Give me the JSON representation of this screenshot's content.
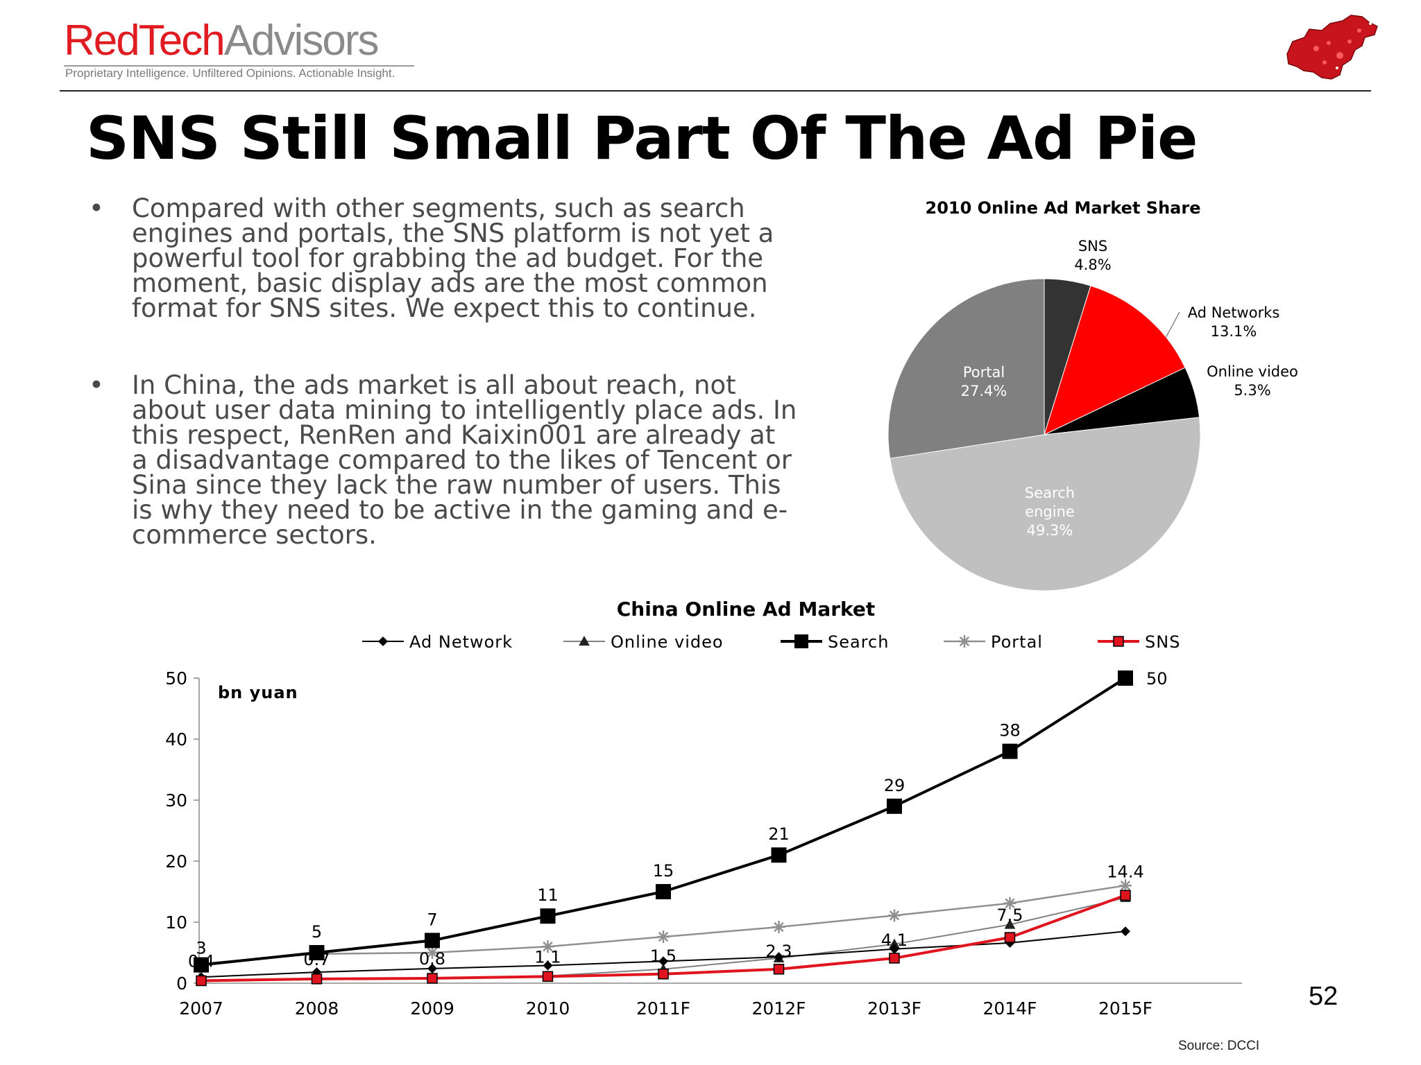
{
  "logo": {
    "red_part": "RedTech",
    "gray_part": "Advisors",
    "tagline": "Proprietary Intelligence.  Unfiltered Opinions.  Actionable Insight."
  },
  "slide": {
    "title": "SNS Still Small Part Of The Ad Pie",
    "page_number": "52",
    "source": "Source: DCCI"
  },
  "bullets": [
    "Compared with other segments, such as search engines and portals, the SNS platform is not yet a powerful tool for grabbing the ad budget. For the moment, basic display ads are the most common format for SNS sites. We expect this to continue.",
    "In China, the ads market is all about reach, not about user data mining to intelligently place ads. In this respect, RenRen and Kaixin001 are already at a disadvantage compared to the likes of Tencent or Sina since they lack the raw number of users. This is why they need to be active in the gaming and e-commerce sectors."
  ],
  "chart_data": [
    {
      "type": "pie",
      "title": "2010 Online Ad Market Share",
      "slices": [
        {
          "name": "SNS",
          "value": 4.8,
          "label": "4.8%",
          "color": "#333333"
        },
        {
          "name": "Ad Networks",
          "value": 13.1,
          "label": "13.1%",
          "color": "#ff0000"
        },
        {
          "name": "Online video",
          "value": 5.3,
          "label": "5.3%",
          "color": "#000000"
        },
        {
          "name": "Search engine",
          "value": 49.3,
          "label": "49.3%",
          "color": "#c0c0c0"
        },
        {
          "name": "Portal",
          "value": 27.4,
          "label": "27.4%",
          "color": "#808080"
        }
      ]
    },
    {
      "type": "line",
      "title": "China Online Ad Market",
      "unit_label": "bn yuan",
      "categories": [
        "2007",
        "2008",
        "2009",
        "2010",
        "2011F",
        "2012F",
        "2013F",
        "2014F",
        "2015F"
      ],
      "ylim": [
        0,
        50
      ],
      "yticks": [
        0,
        10,
        20,
        30,
        40,
        50
      ],
      "legend_position": "top",
      "series": [
        {
          "name": "Ad Network",
          "color": "#000000",
          "marker": "diamond",
          "values": [
            1,
            1.8,
            2.4,
            2.9,
            3.6,
            4.3,
            5.6,
            6.6,
            8.5
          ]
        },
        {
          "name": "Online video",
          "color": "#808080",
          "marker": "triangle",
          "values": [
            0.5,
            0.6,
            0.8,
            1.2,
            2.3,
            4.1,
            6.4,
            9.6,
            14.0
          ]
        },
        {
          "name": "Search",
          "color": "#000000",
          "marker": "square",
          "values": [
            3,
            5,
            7,
            11,
            15,
            21,
            29,
            38,
            50
          ],
          "labels": [
            "3",
            "5",
            "7",
            "11",
            "15",
            "21",
            "29",
            "38",
            "50"
          ]
        },
        {
          "name": "Portal",
          "color": "#909090",
          "marker": "star",
          "values": [
            3.2,
            4.8,
            5.0,
            6.0,
            7.6,
            9.2,
            11.1,
            13.1,
            16.0
          ]
        },
        {
          "name": "SNS",
          "color": "#e0141e",
          "marker": "square",
          "values": [
            0.4,
            0.7,
            0.8,
            1.1,
            1.5,
            2.3,
            4.1,
            7.5,
            14.4
          ],
          "labels": [
            "0.4",
            "0.7",
            "0.8",
            "1.1",
            "1.5",
            "2.3",
            "4.1",
            "7.5",
            "14.4"
          ]
        }
      ]
    }
  ]
}
